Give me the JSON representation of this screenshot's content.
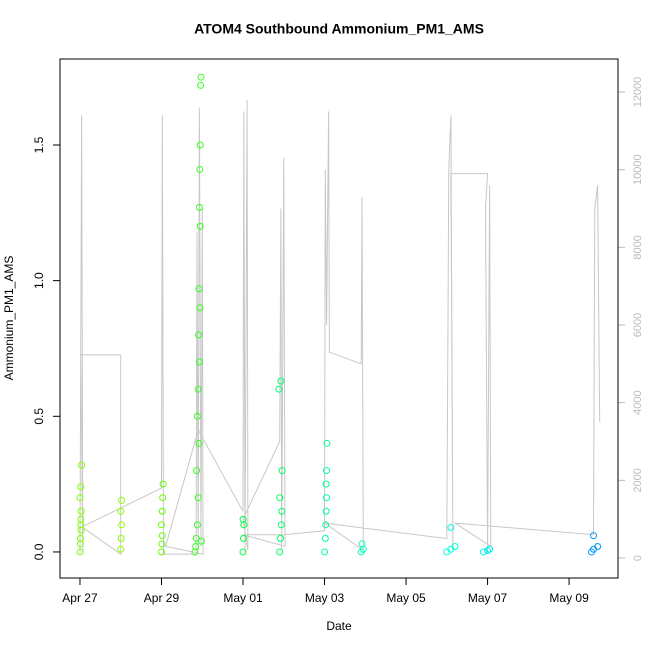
{
  "chart_data": {
    "type": "scatter",
    "title": "ATOM4 Southbound Ammonium_PM1_AMS",
    "x_label": "Date",
    "y_label": "Ammonium_PM1_AMS",
    "xlim": [
      116.51,
      130.2
    ],
    "xticks": [
      {
        "value": 117,
        "label": "Apr 27"
      },
      {
        "value": 119,
        "label": "Apr 29"
      },
      {
        "value": 121,
        "label": "May 01"
      },
      {
        "value": 123,
        "label": "May 03"
      },
      {
        "value": 125,
        "label": "May 05"
      },
      {
        "value": 127,
        "label": "May 07"
      },
      {
        "value": 129,
        "label": "May 09"
      }
    ],
    "ylim": [
      -0.096,
      1.817
    ],
    "yticks": [
      {
        "value": 0,
        "label": "0.0"
      },
      0.5,
      {
        "value": 1,
        "label": "1.0"
      },
      1.5
    ],
    "y2lim": [
      -515,
      12850
    ],
    "y2ticks": [
      0,
      2000,
      4000,
      6000,
      8000,
      10000,
      12000
    ],
    "groups": [
      {
        "color": "#80ff00",
        "x": [
          117.0,
          117.01,
          117.02,
          117.03,
          117.0,
          117.02,
          117.04,
          117.01,
          117.03,
          117.02
        ],
        "values": [
          0.0,
          0.05,
          0.1,
          0.15,
          0.2,
          0.24,
          0.32,
          0.03,
          0.08,
          0.12
        ]
      },
      {
        "color": "#8cff00",
        "x": [
          118.0,
          118.01,
          118.02,
          118.0,
          118.02
        ],
        "values": [
          0.01,
          0.05,
          0.1,
          0.15,
          0.19
        ]
      },
      {
        "color": "#66ff00",
        "x": [
          119.0,
          119.01,
          119.02,
          119.0,
          119.03,
          119.04,
          119.02
        ],
        "values": [
          0.0,
          0.03,
          0.06,
          0.1,
          0.2,
          0.25,
          0.15
        ]
      },
      {
        "color": "#33ff1a",
        "x": [
          119.82,
          119.85,
          119.88,
          119.9,
          119.86,
          119.92,
          119.88,
          119.9,
          119.93,
          119.91,
          119.94,
          119.92,
          119.95,
          119.93,
          119.94,
          119.95,
          119.96,
          119.97,
          119.84,
          119.98
        ],
        "values": [
          0.0,
          0.05,
          0.1,
          0.2,
          0.3,
          0.4,
          0.5,
          0.6,
          0.7,
          0.8,
          0.9,
          0.97,
          1.2,
          1.27,
          1.41,
          1.5,
          1.72,
          1.75,
          0.02,
          0.04
        ]
      },
      {
        "color": "#00ff40",
        "x": [
          121.0,
          121.01,
          121.02,
          121.0
        ],
        "values": [
          0.0,
          0.05,
          0.1,
          0.12
        ]
      },
      {
        "color": "#00ff66",
        "x": [
          121.9,
          121.92,
          121.94,
          121.95,
          121.9,
          121.96,
          121.88,
          121.93
        ],
        "values": [
          0.0,
          0.05,
          0.1,
          0.15,
          0.2,
          0.3,
          0.6,
          0.63
        ]
      },
      {
        "color": "#00ff99",
        "x": [
          123.0,
          123.02,
          123.03,
          123.04,
          123.05,
          123.04,
          123.05,
          123.06
        ],
        "values": [
          0.0,
          0.05,
          0.1,
          0.15,
          0.2,
          0.25,
          0.3,
          0.4
        ]
      },
      {
        "color": "#00ffbb",
        "x": [
          123.9,
          123.95,
          123.92
        ],
        "values": [
          0.0,
          0.01,
          0.03
        ]
      },
      {
        "color": "#00ffdd",
        "x": [
          126.0,
          126.1,
          126.2,
          126.1
        ],
        "values": [
          0.0,
          0.01,
          0.02,
          0.09
        ]
      },
      {
        "color": "#00f0f0",
        "x": [
          126.9,
          127.0,
          127.05
        ],
        "values": [
          0.0,
          0.005,
          0.01
        ]
      },
      {
        "color": "#0099ff",
        "x": [
          129.55,
          129.6,
          129.7,
          129.6
        ],
        "values": [
          0.0,
          0.01,
          0.02,
          0.06
        ]
      }
    ],
    "line": {
      "axis": "y2",
      "color": "#c8c8c8",
      "x": [
        117.0,
        117.04,
        117.07,
        117.02,
        118.0,
        118.0,
        117.05,
        119.0,
        119.02,
        119.05,
        119.0,
        119.85,
        119.87,
        119.9,
        119.93,
        119.97,
        120.0,
        120.02,
        119.1,
        119.9,
        121.0,
        121.02,
        121.05,
        121.1,
        121.12,
        121.0,
        121.9,
        121.93,
        121.95,
        122.0,
        122.03,
        121.0,
        122.0,
        123.0,
        123.02,
        123.05,
        123.1,
        123.12,
        123.9,
        123.92,
        123.95,
        123.0,
        126.0,
        126.05,
        126.1,
        126.15,
        126.1,
        127.0,
        126.95,
        127.0,
        127.05,
        127.08,
        126.2,
        129.6,
        129.63,
        129.7,
        129.75
      ],
      "values": [
        100,
        11400,
        150,
        5230,
        5230,
        100,
        800,
        1800,
        11400,
        100,
        100,
        100,
        8400,
        200,
        11600,
        300,
        9000,
        100,
        300,
        3300,
        1200,
        11500,
        150,
        11800,
        200,
        1000,
        3000,
        9000,
        200,
        10300,
        300,
        600,
        600,
        700,
        10000,
        6000,
        11500,
        5300,
        5000,
        9300,
        200,
        900,
        500,
        10000,
        11400,
        200,
        9900,
        9900,
        9000,
        100,
        9600,
        300,
        900,
        600,
        9000,
        9600,
        3500
      ]
    }
  }
}
